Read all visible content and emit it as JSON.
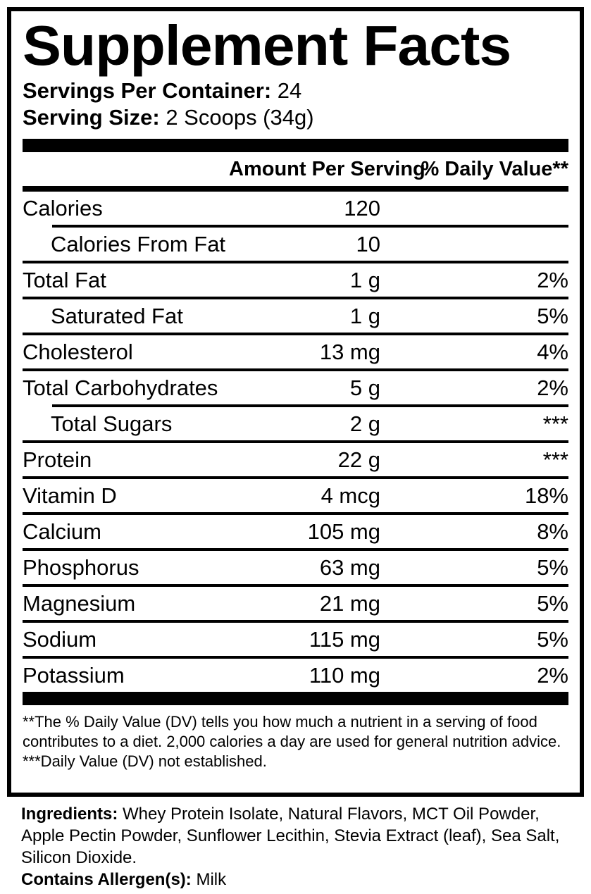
{
  "panel": {
    "title": "Supplement Facts",
    "servings_per_container_label": "Servings Per Container:",
    "servings_per_container_value": "24",
    "serving_size_label": "Serving Size:",
    "serving_size_value": "2 Scoops (34g)"
  },
  "table": {
    "amount_header": "Amount Per Serving",
    "dv_header": "% Daily Value**",
    "rows": [
      {
        "label": "Calories",
        "amount": "120",
        "dv": "",
        "indent": false,
        "divider": "indent"
      },
      {
        "label": "Calories From Fat",
        "amount": "10",
        "dv": "",
        "indent": true,
        "divider": "full"
      },
      {
        "label": "Total Fat",
        "amount": "1 g",
        "dv": "2%",
        "indent": false,
        "divider": "full"
      },
      {
        "label": "Saturated Fat",
        "amount": "1 g",
        "dv": "5%",
        "indent": true,
        "divider": "full"
      },
      {
        "label": "Cholesterol",
        "amount": "13 mg",
        "dv": "4%",
        "indent": false,
        "divider": "full"
      },
      {
        "label": "Total Carbohydrates",
        "amount": "5 g",
        "dv": "2%",
        "indent": false,
        "divider": "indent"
      },
      {
        "label": "Total Sugars",
        "amount": "2 g",
        "dv": "***",
        "indent": true,
        "divider": "full"
      },
      {
        "label": "Protein",
        "amount": "22 g",
        "dv": "***",
        "indent": false,
        "divider": "full"
      },
      {
        "label": "Vitamin D",
        "amount": "4 mcg",
        "dv": "18%",
        "indent": false,
        "divider": "full"
      },
      {
        "label": "Calcium",
        "amount": "105 mg",
        "dv": "8%",
        "indent": false,
        "divider": "full"
      },
      {
        "label": "Phosphorus",
        "amount": "63 mg",
        "dv": "5%",
        "indent": false,
        "divider": "full"
      },
      {
        "label": "Magnesium",
        "amount": "21 mg",
        "dv": "5%",
        "indent": false,
        "divider": "full"
      },
      {
        "label": "Sodium",
        "amount": "115 mg",
        "dv": "5%",
        "indent": false,
        "divider": "full"
      },
      {
        "label": "Potassium",
        "amount": "110 mg",
        "dv": "2%",
        "indent": false,
        "divider": "none"
      }
    ]
  },
  "footnotes": {
    "dv_note": "**The % Daily Value (DV) tells you how much a nutrient in a serving of food contributes to a diet. 2,000 calories a day are used for general nutrition advice.",
    "not_established_note": "***Daily Value (DV) not established."
  },
  "ingredients": {
    "label": "Ingredients:",
    "text": "Whey Protein Isolate, Natural Flavors, MCT Oil Powder, Apple Pectin Powder, Sunflower Lecithin, Stevia Extract (leaf), Sea Salt, Silicon Dioxide."
  },
  "allergens": {
    "label": "Contains Allergen(s):",
    "text": "Milk"
  },
  "colors": {
    "foreground": "#000000",
    "background": "#ffffff"
  }
}
